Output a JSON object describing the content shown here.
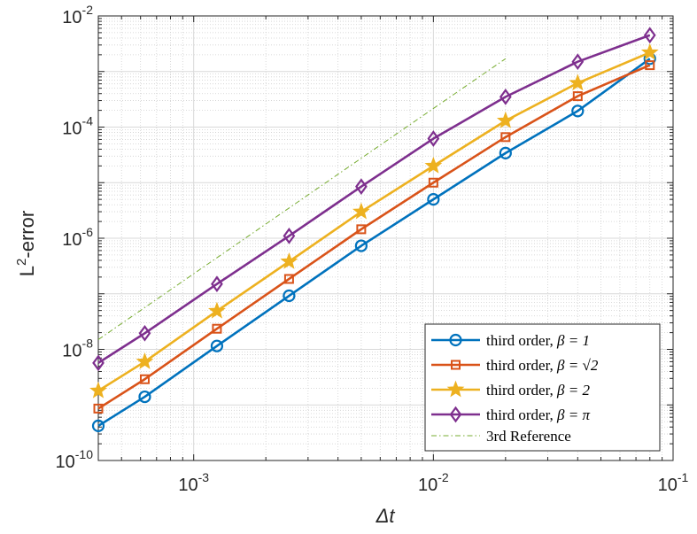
{
  "chart_data": {
    "type": "line",
    "title": "",
    "xlabel": "Δt",
    "ylabel_base": "L",
    "ylabel_sup": "2",
    "ylabel_rest": "-error",
    "xscale": "log",
    "yscale": "log",
    "xlim": [
      0.0004,
      0.1
    ],
    "ylim": [
      1e-10,
      0.01
    ],
    "grid": true,
    "minor_grid": true,
    "legend_position": "bottom-right",
    "x_ticks": [
      {
        "value": 0.001,
        "base": "10",
        "exp": "-3"
      },
      {
        "value": 0.01,
        "base": "10",
        "exp": "-2"
      },
      {
        "value": 0.1,
        "base": "10",
        "exp": "-1"
      }
    ],
    "y_ticks": [
      {
        "value": 1e-10,
        "base": "10",
        "exp": "-10"
      },
      {
        "value": 1e-08,
        "base": "10",
        "exp": "-8"
      },
      {
        "value": 1e-06,
        "base": "10",
        "exp": "-6"
      },
      {
        "value": 0.0001,
        "base": "10",
        "exp": "-4"
      },
      {
        "value": 0.01,
        "base": "10",
        "exp": "-2"
      }
    ],
    "x": [
      0.0004,
      0.000625,
      0.00125,
      0.0025,
      0.005,
      0.01,
      0.02,
      0.04,
      0.08
    ],
    "series": [
      {
        "legend_prefix": "third order, ",
        "legend_math": "β = 1",
        "color": "#0072BD",
        "marker": "circle",
        "values": [
          4.2e-10,
          1.4e-09,
          1.15e-08,
          9.2e-08,
          7.3e-07,
          5e-06,
          3.4e-05,
          0.000195,
          0.0017
        ]
      },
      {
        "legend_prefix": "third order, ",
        "legend_math": "β = √2",
        "color": "#D95319",
        "marker": "square",
        "values": [
          8.6e-10,
          2.9e-09,
          2.35e-08,
          1.85e-07,
          1.45e-06,
          1e-05,
          6.6e-05,
          0.00036,
          0.0013
        ]
      },
      {
        "legend_prefix": "third order, ",
        "legend_math": "β = 2",
        "color": "#EDB120",
        "marker": "star",
        "values": [
          1.8e-09,
          6e-09,
          4.9e-08,
          3.8e-07,
          3e-06,
          2e-05,
          0.00013,
          0.00062,
          0.0022
        ]
      },
      {
        "legend_prefix": "third order, ",
        "legend_math": "β = π",
        "color": "#7E2F8E",
        "marker": "diamond",
        "values": [
          5.7e-09,
          1.95e-08,
          1.5e-07,
          1.1e-06,
          8.5e-06,
          6.2e-05,
          0.00035,
          0.0015,
          0.0045
        ]
      }
    ],
    "reference": {
      "legend": "3rd Reference",
      "color": "#77AC30",
      "x": [
        0.0004,
        0.02
      ],
      "values": [
        1.5e-08,
        0.0017
      ]
    }
  }
}
